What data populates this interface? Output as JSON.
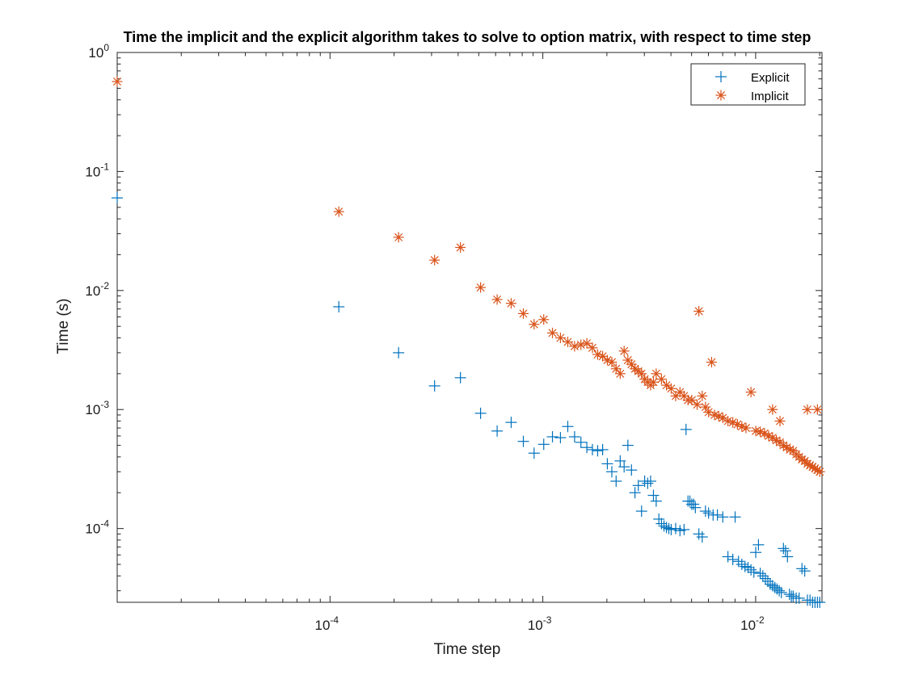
{
  "chart_data": {
    "type": "scatter",
    "title": "Time the implicit and the explicit algorithm takes to solve to option matrix, with respect to time step",
    "xlabel": "Time step",
    "ylabel": "Time (s)",
    "xscale": "log",
    "yscale": "log",
    "xlim": [
      1e-05,
      0.0205
    ],
    "ylim": [
      2.4e-05,
      1
    ],
    "x_ticks": [
      {
        "value": 0.0001,
        "base": "10",
        "exp": "-4"
      },
      {
        "value": 0.001,
        "base": "10",
        "exp": "-3"
      },
      {
        "value": 0.01,
        "base": "10",
        "exp": "-2"
      }
    ],
    "y_ticks": [
      {
        "value": 0.0001,
        "base": "10",
        "exp": "-4"
      },
      {
        "value": 0.001,
        "base": "10",
        "exp": "-3"
      },
      {
        "value": 0.01,
        "base": "10",
        "exp": "-2"
      },
      {
        "value": 0.1,
        "base": "10",
        "exp": "-1"
      },
      {
        "value": 1,
        "base": "10",
        "exp": "0"
      }
    ],
    "grid": false,
    "legend_position": "top-right",
    "series": [
      {
        "name": "Explicit",
        "marker": "plus",
        "color": "#0072BD",
        "points": [
          [
            1e-05,
            0.06
          ],
          [
            0.00011,
            0.0073
          ],
          [
            0.00021,
            0.003
          ],
          [
            0.00031,
            0.00158
          ],
          [
            0.00041,
            0.00185
          ],
          [
            0.00051,
            0.00093
          ],
          [
            0.00061,
            0.00066
          ],
          [
            0.00071,
            0.00078
          ],
          [
            0.00081,
            0.00054
          ],
          [
            0.00091,
            0.00043
          ],
          [
            0.00101,
            0.00051
          ],
          [
            0.00111,
            0.00059
          ],
          [
            0.00121,
            0.00058
          ],
          [
            0.00131,
            0.00072
          ],
          [
            0.00141,
            0.00059
          ],
          [
            0.00151,
            0.00053
          ],
          [
            0.00161,
            0.00048
          ],
          [
            0.00171,
            0.00046
          ],
          [
            0.00181,
            0.00045
          ],
          [
            0.00191,
            0.00046
          ],
          [
            0.00201,
            0.00035
          ],
          [
            0.00211,
            0.0003
          ],
          [
            0.00221,
            0.00025
          ],
          [
            0.00231,
            0.00037
          ],
          [
            0.00241,
            0.00033
          ],
          [
            0.00251,
            0.0005
          ],
          [
            0.00261,
            0.00031
          ],
          [
            0.00271,
            0.0002
          ],
          [
            0.00281,
            0.00023
          ],
          [
            0.00291,
            0.00014
          ],
          [
            0.00301,
            0.00025
          ],
          [
            0.00311,
            0.00024
          ],
          [
            0.00321,
            0.00025
          ],
          [
            0.00331,
            0.00019
          ],
          [
            0.00341,
            0.00017
          ],
          [
            0.00351,
            0.00012
          ],
          [
            0.00361,
            0.00011
          ],
          [
            0.00371,
            0.000105
          ],
          [
            0.00381,
            0.000102
          ],
          [
            0.00391,
            0.0001
          ],
          [
            0.00401,
            9.8e-05
          ],
          [
            0.00421,
            0.0001
          ],
          [
            0.00441,
            9.6e-05
          ],
          [
            0.00461,
            9.8e-05
          ],
          [
            0.00471,
            0.00068
          ],
          [
            0.00481,
            0.00017
          ],
          [
            0.00491,
            0.00017
          ],
          [
            0.00501,
            0.00016
          ],
          [
            0.00511,
            0.00016
          ],
          [
            0.00521,
            0.00015
          ],
          [
            0.00541,
            9e-05
          ],
          [
            0.00561,
            8.5e-05
          ],
          [
            0.00581,
            0.00014
          ],
          [
            0.00601,
            0.000135
          ],
          [
            0.00631,
            0.00013
          ],
          [
            0.00661,
            0.00013
          ],
          [
            0.00701,
            0.000125
          ],
          [
            0.00741,
            5.8e-05
          ],
          [
            0.00781,
            5.5e-05
          ],
          [
            0.00801,
            0.000125
          ],
          [
            0.00831,
            5.3e-05
          ],
          [
            0.00861,
            5e-05
          ],
          [
            0.00891,
            4.8e-05
          ],
          [
            0.00921,
            4.7e-05
          ],
          [
            0.00951,
            4.5e-05
          ],
          [
            0.00981,
            4.3e-05
          ],
          [
            0.01001,
            6.3e-05
          ],
          [
            0.01031,
            7.3e-05
          ],
          [
            0.01051,
            4.2e-05
          ],
          [
            0.01081,
            4e-05
          ],
          [
            0.01111,
            3.8e-05
          ],
          [
            0.01141,
            3.6e-05
          ],
          [
            0.01171,
            3.4e-05
          ],
          [
            0.01201,
            3.3e-05
          ],
          [
            0.01231,
            3.2e-05
          ],
          [
            0.01261,
            3.1e-05
          ],
          [
            0.01291,
            3e-05
          ],
          [
            0.01321,
            2.9e-05
          ],
          [
            0.01351,
            6.8e-05
          ],
          [
            0.01381,
            6.5e-05
          ],
          [
            0.01411,
            5.8e-05
          ],
          [
            0.01441,
            2.8e-05
          ],
          [
            0.01471,
            2.7e-05
          ],
          [
            0.01501,
            2.7e-05
          ],
          [
            0.01551,
            2.6e-05
          ],
          [
            0.01601,
            2.6e-05
          ],
          [
            0.01651,
            4.6e-05
          ],
          [
            0.01701,
            4.4e-05
          ],
          [
            0.01751,
            2.5e-05
          ],
          [
            0.01801,
            2.5e-05
          ],
          [
            0.01851,
            2.4e-05
          ],
          [
            0.01901,
            2.4e-05
          ],
          [
            0.01951,
            2.4e-05
          ],
          [
            0.02001,
            2.4e-05
          ]
        ]
      },
      {
        "name": "Implicit",
        "marker": "asterisk",
        "color": "#D95319",
        "points": [
          [
            1e-05,
            0.57
          ],
          [
            0.00011,
            0.046
          ],
          [
            0.00021,
            0.028
          ],
          [
            0.00031,
            0.018
          ],
          [
            0.00041,
            0.023
          ],
          [
            0.00051,
            0.0106
          ],
          [
            0.00061,
            0.0084
          ],
          [
            0.00071,
            0.0078
          ],
          [
            0.00081,
            0.0064
          ],
          [
            0.00091,
            0.0052
          ],
          [
            0.00101,
            0.0057
          ],
          [
            0.00111,
            0.0044
          ],
          [
            0.00121,
            0.004
          ],
          [
            0.00131,
            0.0037
          ],
          [
            0.00141,
            0.0034
          ],
          [
            0.00151,
            0.0035
          ],
          [
            0.00161,
            0.0036
          ],
          [
            0.00171,
            0.0033
          ],
          [
            0.00181,
            0.0029
          ],
          [
            0.00191,
            0.0028
          ],
          [
            0.00201,
            0.0026
          ],
          [
            0.00211,
            0.0025
          ],
          [
            0.00221,
            0.0022
          ],
          [
            0.00231,
            0.002
          ],
          [
            0.00241,
            0.0031
          ],
          [
            0.00251,
            0.0026
          ],
          [
            0.00261,
            0.0024
          ],
          [
            0.00271,
            0.0022
          ],
          [
            0.00281,
            0.0021
          ],
          [
            0.00291,
            0.002
          ],
          [
            0.00301,
            0.0018
          ],
          [
            0.00311,
            0.0017
          ],
          [
            0.00321,
            0.0016
          ],
          [
            0.00331,
            0.0017
          ],
          [
            0.00341,
            0.002
          ],
          [
            0.00361,
            0.0018
          ],
          [
            0.00381,
            0.0016
          ],
          [
            0.00401,
            0.0015
          ],
          [
            0.00421,
            0.0013
          ],
          [
            0.00441,
            0.0014
          ],
          [
            0.00461,
            0.0013
          ],
          [
            0.00481,
            0.0012
          ],
          [
            0.00501,
            0.0012
          ],
          [
            0.00531,
            0.0011
          ],
          [
            0.00541,
            0.0067
          ],
          [
            0.00561,
            0.0013
          ],
          [
            0.00581,
            0.00105
          ],
          [
            0.00601,
            0.00095
          ],
          [
            0.00621,
            0.0025
          ],
          [
            0.00641,
            0.0009
          ],
          [
            0.00671,
            0.00088
          ],
          [
            0.00701,
            0.00085
          ],
          [
            0.00741,
            0.0008
          ],
          [
            0.00781,
            0.00078
          ],
          [
            0.00821,
            0.00075
          ],
          [
            0.00861,
            0.00072
          ],
          [
            0.00901,
            0.0007
          ],
          [
            0.00951,
            0.0014
          ],
          [
            0.01001,
            0.00066
          ],
          [
            0.01051,
            0.00065
          ],
          [
            0.01101,
            0.00063
          ],
          [
            0.01151,
            0.0006
          ],
          [
            0.01201,
            0.00058
          ],
          [
            0.01251,
            0.00055
          ],
          [
            0.01301,
            0.00053
          ],
          [
            0.01351,
            0.0005
          ],
          [
            0.01401,
            0.00048
          ],
          [
            0.01451,
            0.00046
          ],
          [
            0.01501,
            0.00045
          ],
          [
            0.01551,
            0.00042
          ],
          [
            0.01601,
            0.0004
          ],
          [
            0.01651,
            0.00038
          ],
          [
            0.01701,
            0.00037
          ],
          [
            0.01751,
            0.00035
          ],
          [
            0.01801,
            0.00034
          ],
          [
            0.01851,
            0.00033
          ],
          [
            0.01901,
            0.00032
          ],
          [
            0.01951,
            0.00031
          ],
          [
            0.02001,
            0.0003
          ],
          [
            0.01751,
            0.001
          ],
          [
            0.01951,
            0.001
          ],
          [
            0.01201,
            0.001
          ],
          [
            0.01301,
            0.0008
          ]
        ]
      }
    ]
  }
}
